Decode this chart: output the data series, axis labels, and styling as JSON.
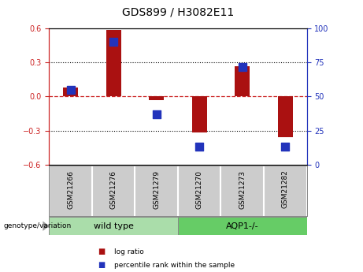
{
  "title": "GDS899 / H3082E11",
  "samples": [
    "GSM21266",
    "GSM21276",
    "GSM21279",
    "GSM21270",
    "GSM21273",
    "GSM21282"
  ],
  "log_ratios": [
    0.08,
    0.585,
    -0.03,
    -0.32,
    0.27,
    -0.355
  ],
  "percentile_ranks": [
    55,
    90,
    37,
    13,
    72,
    13
  ],
  "ylim": [
    -0.6,
    0.6
  ],
  "y2lim": [
    0,
    100
  ],
  "yticks": [
    -0.6,
    -0.3,
    0.0,
    0.3,
    0.6
  ],
  "y2ticks": [
    0,
    25,
    50,
    75,
    100
  ],
  "bar_color": "#aa1111",
  "dot_color": "#2233bb",
  "zero_line_color": "#cc2222",
  "groups": [
    {
      "label": "wild type",
      "indices": [
        0,
        1,
        2
      ],
      "color": "#aaddaa"
    },
    {
      "label": "AQP1-/-",
      "indices": [
        3,
        4,
        5
      ],
      "color": "#66cc66"
    }
  ],
  "group_label": "genotype/variation",
  "legend_items": [
    {
      "label": "log ratio",
      "color": "#aa1111"
    },
    {
      "label": "percentile rank within the sample",
      "color": "#2233bb"
    }
  ],
  "bar_width": 0.35,
  "dot_size": 55,
  "background_color": "#ffffff",
  "plot_bg": "#ffffff",
  "tick_label_fontsize": 7,
  "title_fontsize": 10,
  "label_box_color": "#cccccc",
  "label_sep_color": "#999999"
}
